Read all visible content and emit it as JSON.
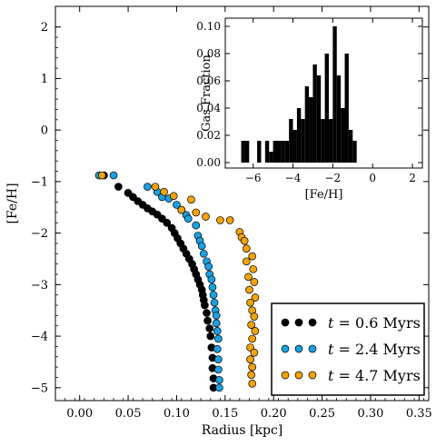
{
  "chart_data": [
    {
      "type": "scatter",
      "xlabel": "Radius [kpc]",
      "ylabel": "[Fe/H]",
      "xlim": [
        -0.025,
        0.36
      ],
      "ylim": [
        -5.25,
        2.4
      ],
      "xticks": [
        "0.00",
        "0.05",
        "0.10",
        "0.15",
        "0.20",
        "0.25",
        "0.30",
        "0.35"
      ],
      "yticks": [
        "2",
        "1",
        "0",
        "−1",
        "−2",
        "−3",
        "−4",
        "−5"
      ],
      "legend_position": "bottom-right",
      "series": [
        {
          "name": "t = 0.6 Myrs",
          "legend_var": "t",
          "legend_rest": " = 0.6 Myrs",
          "color": "#000000",
          "points": [
            [
              0.025,
              -0.88
            ],
            [
              0.04,
              -1.1
            ],
            [
              0.05,
              -1.22
            ],
            [
              0.055,
              -1.3
            ],
            [
              0.06,
              -1.38
            ],
            [
              0.065,
              -1.45
            ],
            [
              0.07,
              -1.52
            ],
            [
              0.075,
              -1.58
            ],
            [
              0.08,
              -1.64
            ],
            [
              0.085,
              -1.72
            ],
            [
              0.09,
              -1.8
            ],
            [
              0.095,
              -1.9
            ],
            [
              0.098,
              -2.0
            ],
            [
              0.101,
              -2.1
            ],
            [
              0.104,
              -2.2
            ],
            [
              0.107,
              -2.3
            ],
            [
              0.11,
              -2.4
            ],
            [
              0.113,
              -2.5
            ],
            [
              0.116,
              -2.6
            ],
            [
              0.118,
              -2.7
            ],
            [
              0.12,
              -2.8
            ],
            [
              0.122,
              -2.9
            ],
            [
              0.124,
              -3.0
            ],
            [
              0.126,
              -3.1
            ],
            [
              0.127,
              -3.2
            ],
            [
              0.128,
              -3.3
            ],
            [
              0.129,
              -3.4
            ],
            [
              0.131,
              -3.55
            ],
            [
              0.132,
              -3.7
            ],
            [
              0.134,
              -3.85
            ],
            [
              0.135,
              -4.0
            ],
            [
              0.136,
              -4.22
            ],
            [
              0.137,
              -4.42
            ],
            [
              0.137,
              -4.62
            ],
            [
              0.138,
              -4.82
            ],
            [
              0.138,
              -5.0
            ]
          ]
        },
        {
          "name": "t = 2.4 Myrs",
          "legend_var": "t",
          "legend_rest": " = 2.4 Myrs",
          "color": "#1ba1e2",
          "points": [
            [
              0.02,
              -0.88
            ],
            [
              0.035,
              -0.88
            ],
            [
              0.07,
              -1.1
            ],
            [
              0.08,
              -1.2
            ],
            [
              0.085,
              -1.3
            ],
            [
              0.092,
              -1.33
            ],
            [
              0.1,
              -1.45
            ],
            [
              0.105,
              -1.55
            ],
            [
              0.11,
              -1.65
            ],
            [
              0.112,
              -1.72
            ],
            [
              0.12,
              -1.85
            ],
            [
              0.122,
              -2.05
            ],
            [
              0.124,
              -2.15
            ],
            [
              0.126,
              -2.25
            ],
            [
              0.128,
              -2.4
            ],
            [
              0.131,
              -2.55
            ],
            [
              0.133,
              -2.65
            ],
            [
              0.134,
              -2.8
            ],
            [
              0.136,
              -2.9
            ],
            [
              0.137,
              -3.05
            ],
            [
              0.138,
              -3.2
            ],
            [
              0.139,
              -3.35
            ],
            [
              0.14,
              -3.5
            ],
            [
              0.141,
              -3.6
            ],
            [
              0.141,
              -3.75
            ],
            [
              0.142,
              -3.9
            ],
            [
              0.143,
              -4.05
            ],
            [
              0.142,
              -4.25
            ],
            [
              0.143,
              -4.45
            ],
            [
              0.143,
              -4.65
            ],
            [
              0.144,
              -4.85
            ],
            [
              0.144,
              -5.0
            ]
          ]
        },
        {
          "name": "t = 4.7 Myrs",
          "legend_var": "t",
          "legend_rest": " = 4.7 Myrs",
          "color": "#f0a30a",
          "points": [
            [
              0.023,
              -0.88
            ],
            [
              0.078,
              -1.1
            ],
            [
              0.087,
              -1.2
            ],
            [
              0.097,
              -1.28
            ],
            [
              0.115,
              -1.35
            ],
            [
              0.105,
              -1.55
            ],
            [
              0.12,
              -1.6
            ],
            [
              0.13,
              -1.68
            ],
            [
              0.145,
              -1.75
            ],
            [
              0.155,
              -1.75
            ],
            [
              0.165,
              -1.98
            ],
            [
              0.167,
              -2.08
            ],
            [
              0.17,
              -2.15
            ],
            [
              0.172,
              -2.3
            ],
            [
              0.178,
              -2.45
            ],
            [
              0.172,
              -2.55
            ],
            [
              0.179,
              -2.7
            ],
            [
              0.174,
              -2.85
            ],
            [
              0.18,
              -2.95
            ],
            [
              0.175,
              -3.1
            ],
            [
              0.181,
              -3.25
            ],
            [
              0.176,
              -3.35
            ],
            [
              0.178,
              -3.5
            ],
            [
              0.18,
              -3.62
            ],
            [
              0.177,
              -3.78
            ],
            [
              0.181,
              -3.9
            ],
            [
              0.178,
              -4.05
            ],
            [
              0.176,
              -4.22
            ],
            [
              0.18,
              -4.32
            ],
            [
              0.176,
              -4.45
            ],
            [
              0.178,
              -4.6
            ],
            [
              0.177,
              -4.75
            ],
            [
              0.178,
              -4.92
            ]
          ]
        }
      ]
    },
    {
      "type": "bar",
      "xlabel": "[Fe/H]",
      "ylabel": "Gas Fraction",
      "xlim": [
        -7.4,
        2.5
      ],
      "ylim": [
        -0.004,
        0.106
      ],
      "xticks": [
        "−6",
        "−4",
        "−2",
        "0",
        "2"
      ],
      "yticks": [
        "0.00",
        "0.02",
        "0.04",
        "0.06",
        "0.08",
        "0.10"
      ],
      "color": "#000000",
      "bin_width": 0.2,
      "bins": [
        [
          -6.6,
          0.016
        ],
        [
          -6.4,
          0.016
        ],
        [
          -5.8,
          0.016
        ],
        [
          -5.4,
          0.016
        ],
        [
          -5.2,
          0.008
        ],
        [
          -5.0,
          0.016
        ],
        [
          -4.8,
          0.016
        ],
        [
          -4.6,
          0.016
        ],
        [
          -4.4,
          0.016
        ],
        [
          -4.2,
          0.032
        ],
        [
          -4.0,
          0.024
        ],
        [
          -3.8,
          0.04
        ],
        [
          -3.6,
          0.032
        ],
        [
          -3.4,
          0.056
        ],
        [
          -3.2,
          0.048
        ],
        [
          -3.0,
          0.072
        ],
        [
          -2.8,
          0.064
        ],
        [
          -2.6,
          0.032
        ],
        [
          -2.4,
          0.08
        ],
        [
          -2.2,
          0.032
        ],
        [
          -2.0,
          0.1
        ],
        [
          -1.8,
          0.064
        ],
        [
          -1.6,
          0.04
        ],
        [
          -1.4,
          0.08
        ],
        [
          -1.2,
          0.024
        ],
        [
          -1.0,
          0.016
        ]
      ]
    }
  ]
}
